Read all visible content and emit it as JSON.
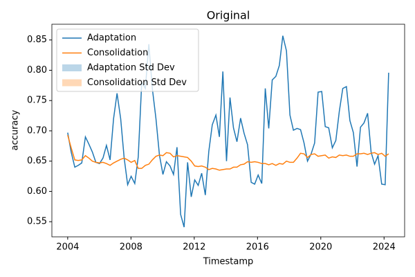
{
  "chart_data": {
    "type": "line",
    "title": "Original",
    "x_label": "Timestamp",
    "y_label": "accuracy",
    "x": [
      2004.0,
      2004.22,
      2004.45,
      2004.67,
      2004.89,
      2005.12,
      2005.34,
      2005.56,
      2005.78,
      2006.01,
      2006.23,
      2006.45,
      2006.68,
      2006.9,
      2007.12,
      2007.35,
      2007.57,
      2007.79,
      2008.01,
      2008.24,
      2008.46,
      2008.68,
      2008.91,
      2009.13,
      2009.35,
      2009.58,
      2009.8,
      2010.02,
      2010.24,
      2010.47,
      2010.69,
      2010.91,
      2011.14,
      2011.36,
      2011.58,
      2011.81,
      2012.03,
      2012.25,
      2012.47,
      2012.7,
      2012.92,
      2013.14,
      2013.37,
      2013.59,
      2013.81,
      2014.04,
      2014.26,
      2014.48,
      2014.7,
      2014.93,
      2015.15,
      2015.37,
      2015.6,
      2015.82,
      2016.04,
      2016.27,
      2016.49,
      2016.71,
      2016.93,
      2017.16,
      2017.38,
      2017.6,
      2017.83,
      2018.05,
      2018.27,
      2018.5,
      2018.72,
      2018.94,
      2019.16,
      2019.39,
      2019.61,
      2019.83,
      2020.06,
      2020.28,
      2020.5,
      2020.73,
      2020.95,
      2021.17,
      2021.39,
      2021.62,
      2021.84,
      2022.06,
      2022.29,
      2022.51,
      2022.73,
      2022.96,
      2023.18,
      2023.4,
      2023.62,
      2023.85,
      2024.07,
      2024.29
    ],
    "series": [
      {
        "name": "Adaptation",
        "color": "#1f77b4",
        "values": [
          0.697,
          0.665,
          0.64,
          0.643,
          0.647,
          0.69,
          0.678,
          0.665,
          0.648,
          0.646,
          0.655,
          0.676,
          0.652,
          0.72,
          0.762,
          0.72,
          0.655,
          0.611,
          0.625,
          0.613,
          0.657,
          0.78,
          0.77,
          0.843,
          0.77,
          0.72,
          0.66,
          0.628,
          0.649,
          0.642,
          0.628,
          0.673,
          0.562,
          0.541,
          0.648,
          0.591,
          0.619,
          0.61,
          0.63,
          0.594,
          0.666,
          0.71,
          0.726,
          0.69,
          0.798,
          0.65,
          0.755,
          0.705,
          0.682,
          0.721,
          0.696,
          0.677,
          0.615,
          0.612,
          0.627,
          0.613,
          0.77,
          0.704,
          0.784,
          0.79,
          0.808,
          0.857,
          0.832,
          0.726,
          0.701,
          0.704,
          0.702,
          0.68,
          0.65,
          0.662,
          0.68,
          0.764,
          0.765,
          0.707,
          0.705,
          0.672,
          0.684,
          0.732,
          0.77,
          0.773,
          0.717,
          0.697,
          0.641,
          0.706,
          0.713,
          0.729,
          0.665,
          0.645,
          0.659,
          0.612,
          0.611,
          0.796
        ]
      },
      {
        "name": "Consolidation",
        "color": "#ff7f0e",
        "values": [
          0.693,
          0.672,
          0.652,
          0.651,
          0.652,
          0.659,
          0.655,
          0.65,
          0.648,
          0.647,
          0.648,
          0.646,
          0.643,
          0.647,
          0.65,
          0.653,
          0.655,
          0.652,
          0.648,
          0.651,
          0.638,
          0.638,
          0.643,
          0.645,
          0.652,
          0.658,
          0.66,
          0.659,
          0.664,
          0.663,
          0.657,
          0.659,
          0.658,
          0.657,
          0.656,
          0.65,
          0.642,
          0.641,
          0.642,
          0.64,
          0.636,
          0.638,
          0.637,
          0.635,
          0.636,
          0.637,
          0.637,
          0.64,
          0.64,
          0.644,
          0.645,
          0.649,
          0.648,
          0.649,
          0.648,
          0.646,
          0.646,
          0.644,
          0.646,
          0.643,
          0.646,
          0.645,
          0.65,
          0.648,
          0.648,
          0.655,
          0.663,
          0.662,
          0.656,
          0.661,
          0.662,
          0.658,
          0.659,
          0.66,
          0.655,
          0.657,
          0.656,
          0.66,
          0.659,
          0.66,
          0.658,
          0.658,
          0.662,
          0.662,
          0.663,
          0.661,
          0.663,
          0.664,
          0.661,
          0.663,
          0.658,
          0.662
        ]
      }
    ],
    "band_legend": [
      {
        "name": "Adaptation Std Dev",
        "color": "#1f77b4"
      },
      {
        "name": "Consolidation Std Dev",
        "color": "#ff7f0e"
      }
    ],
    "xlim": [
      2003.0,
      2025.3
    ],
    "ylim": [
      0.525,
      0.876
    ],
    "xticks": [
      2004,
      2008,
      2012,
      2016,
      2020,
      2024
    ],
    "yticks": [
      0.55,
      {
        "value": 0.6,
        "label": "0.60"
      },
      0.65,
      {
        "value": 0.7,
        "label": "0.70"
      },
      0.75,
      {
        "value": 0.8,
        "label": "0.80"
      },
      0.85
    ],
    "legend": "upper left",
    "grid": false
  }
}
